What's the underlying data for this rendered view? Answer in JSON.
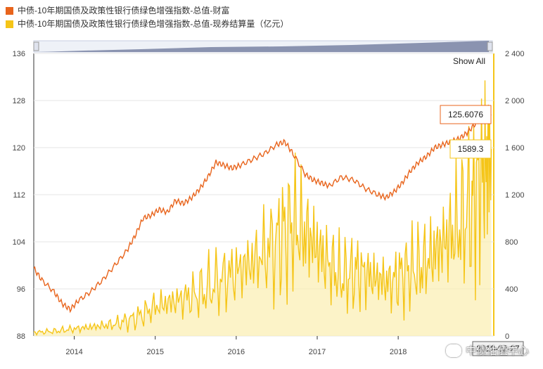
{
  "legend": [
    {
      "label": "中债-10年期国债及政策性银行债绿色增强指数-总值-财富",
      "color": "#e8641c"
    },
    {
      "label": "中债-10年期国债及政策性银行债绿色增强指数-总值-现券结算量（亿元）",
      "color": "#f5c518"
    }
  ],
  "show_all_label": "Show All",
  "tooltip": {
    "left_value": "125.6076",
    "right_value": "1589.3"
  },
  "date_box": "2019-02-27",
  "watermark": "中债估值中心",
  "chart_data": {
    "type": "line",
    "title": "",
    "x_ticks": [
      "2014",
      "2015",
      "2016",
      "2017",
      "2018"
    ],
    "y_left": {
      "ticks": [
        88,
        96,
        104,
        112,
        120,
        128,
        136
      ],
      "range": [
        88,
        136
      ]
    },
    "y_right": {
      "ticks": [
        0,
        400,
        800,
        1200,
        1600,
        2000,
        2400
      ],
      "labels": [
        "0",
        "400",
        "800",
        "1 200",
        "1 600",
        "2 000",
        "2 400"
      ],
      "range": [
        0,
        2400
      ]
    },
    "series": [
      {
        "name": "中债-10年期国债及政策性银行债绿色增强指数-总值-财富",
        "color": "#e8641c",
        "axis": "left",
        "x": [
          2013.5,
          2013.6,
          2013.75,
          2013.85,
          2013.95,
          2014.05,
          2014.2,
          2014.35,
          2014.5,
          2014.65,
          2014.75,
          2014.85,
          2014.95,
          2015.05,
          2015.15,
          2015.25,
          2015.35,
          2015.45,
          2015.55,
          2015.65,
          2015.75,
          2015.85,
          2015.95,
          2016.05,
          2016.2,
          2016.35,
          2016.5,
          2016.6,
          2016.7,
          2016.85,
          2016.95,
          2017.05,
          2017.15,
          2017.3,
          2017.45,
          2017.6,
          2017.75,
          2017.85,
          2017.95,
          2018.05,
          2018.15,
          2018.25,
          2018.35,
          2018.45,
          2018.55,
          2018.65,
          2018.75,
          2018.85,
          2018.95,
          2019.05,
          2019.15
        ],
        "values": [
          99.5,
          97.5,
          95.5,
          93.5,
          92.5,
          94.0,
          95.5,
          97.5,
          100.0,
          102.5,
          105.0,
          108.0,
          108.5,
          109.5,
          109.0,
          111.0,
          110.5,
          111.5,
          113.0,
          115.0,
          117.5,
          117.0,
          116.5,
          117.0,
          118.0,
          119.0,
          120.5,
          121.0,
          119.0,
          115.5,
          114.5,
          114.0,
          113.5,
          115.0,
          114.5,
          113.0,
          112.0,
          111.5,
          112.5,
          114.0,
          116.0,
          117.5,
          118.5,
          120.0,
          120.5,
          121.0,
          121.5,
          122.5,
          124.0,
          125.6,
          125.6
        ]
      },
      {
        "name": "中债-10年期国债及政策性银行债绿色增强指数-总值-现券结算量（亿元）",
        "color": "#f5c518",
        "axis": "right",
        "x": [
          2013.5,
          2013.75,
          2014.0,
          2014.25,
          2014.5,
          2014.75,
          2015.0,
          2015.25,
          2015.5,
          2015.75,
          2016.0,
          2016.25,
          2016.5,
          2016.7,
          2016.9,
          2017.1,
          2017.3,
          2017.5,
          2017.7,
          2017.9,
          2018.1,
          2018.3,
          2018.5,
          2018.7,
          2018.9,
          2019.05,
          2019.15
        ],
        "values": [
          30,
          40,
          60,
          80,
          100,
          150,
          250,
          300,
          350,
          450,
          550,
          650,
          800,
          950,
          850,
          650,
          500,
          550,
          500,
          450,
          550,
          600,
          750,
          900,
          1100,
          1400,
          1589.3
        ]
      }
    ],
    "grid": true,
    "legend_position": "top-left"
  }
}
